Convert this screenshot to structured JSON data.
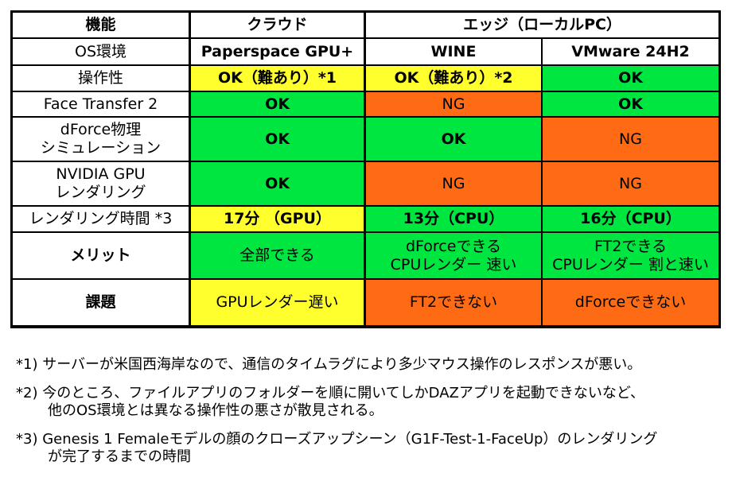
{
  "colors": {
    "green": "#00e640",
    "yellow": "#ffff2e",
    "orange": "#ff6a14",
    "white": "#ffffff",
    "border": "#000000"
  },
  "table": {
    "header": {
      "feature": "機能",
      "cloud": "クラウド",
      "edge": "エッジ（ローカルPC）"
    },
    "env_row": {
      "label": "OS環境",
      "cloud_env": "Paperspace GPU+",
      "edge_env_1": "WINE",
      "edge_env_2": "VMware 24H2"
    },
    "rows": [
      {
        "label": "操作性",
        "paperspace": {
          "text": "OK（難あり）*1",
          "status": "yellow"
        },
        "wine": {
          "text": "OK（難あり）*2",
          "status": "yellow"
        },
        "vmware": {
          "text": "OK",
          "status": "green"
        }
      },
      {
        "label": "Face Transfer 2",
        "paperspace": {
          "text": "OK",
          "status": "green"
        },
        "wine": {
          "text": "NG",
          "status": "orange"
        },
        "vmware": {
          "text": "OK",
          "status": "green"
        }
      },
      {
        "label": "dForce物理\nシミュレーション",
        "paperspace": {
          "text": "OK",
          "status": "green"
        },
        "wine": {
          "text": "OK",
          "status": "green"
        },
        "vmware": {
          "text": "NG",
          "status": "orange"
        }
      },
      {
        "label": "NVIDIA GPU\nレンダリング",
        "paperspace": {
          "text": "OK",
          "status": "green"
        },
        "wine": {
          "text": "NG",
          "status": "orange"
        },
        "vmware": {
          "text": "NG",
          "status": "orange"
        }
      },
      {
        "label": "レンダリング時間 *3",
        "paperspace": {
          "text": "17分 （GPU）",
          "status": "yellow"
        },
        "wine": {
          "text": "13分（CPU）",
          "status": "green"
        },
        "vmware": {
          "text": "16分（CPU）",
          "status": "green"
        }
      },
      {
        "label": "メリット",
        "paperspace": {
          "text": "全部できる",
          "status": "green"
        },
        "wine": {
          "text": "dForceできる\nCPUレンダー 速い",
          "status": "green"
        },
        "vmware": {
          "text": "FT2できる\nCPUレンダー 割と速い",
          "status": "green"
        }
      },
      {
        "label": "課題",
        "paperspace": {
          "text": "GPUレンダー遅い",
          "status": "yellow"
        },
        "wine": {
          "text": "FT2できない",
          "status": "orange"
        },
        "vmware": {
          "text": "dForceできない",
          "status": "orange"
        }
      }
    ]
  },
  "notes": [
    {
      "lines": [
        "*1) サーバーが米国西海岸なので、通信のタイムラグにより多少マウス操作のレスポンスが悪い。"
      ]
    },
    {
      "lines": [
        "*2) 今のところ、ファイルアプリのフォルダーを順に開いてしかDAZアプリを起動できないなど、",
        "他のOS環境とは異なる操作性の悪さが散見される。"
      ]
    },
    {
      "lines": [
        "*3) Genesis 1 Femaleモデルの顔のクローズアップシーン（G1F-Test-1-FaceUp）のレンダリング",
        "が完了するまでの時間"
      ]
    }
  ]
}
